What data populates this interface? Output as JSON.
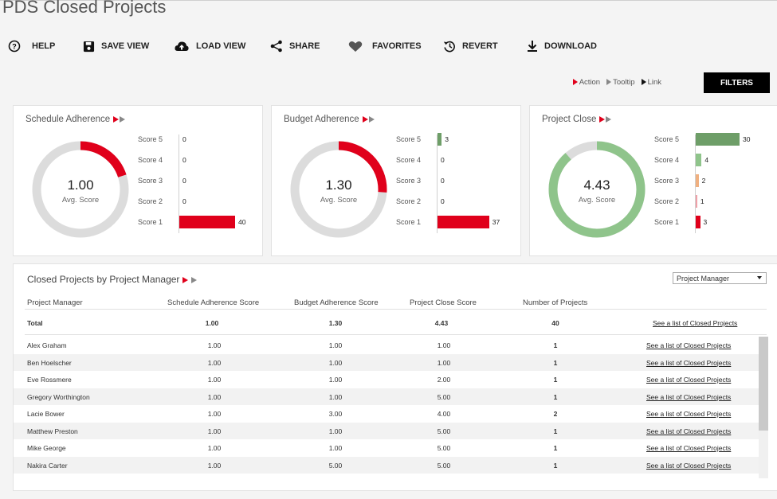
{
  "page": {
    "title": "PDS Closed Projects"
  },
  "toolbar": {
    "help": "HELP",
    "save_view": "SAVE VIEW",
    "load_view": "LOAD VIEW",
    "share": "SHARE",
    "favorites": "FAVORITES",
    "revert": "REVERT",
    "download": "DOWNLOAD"
  },
  "legend": {
    "action": "Action",
    "tooltip": "Tooltip",
    "link": "Link"
  },
  "filters_label": "FILTERS",
  "colors": {
    "red": "#e0001b",
    "green": "#6e9e68",
    "light_green": "#8fc48b",
    "orange": "#f0b080",
    "pink": "#f0a0a8",
    "gray_ring": "#dcdcdc"
  },
  "cards": [
    {
      "title": "Schedule Adherence",
      "avg": "1.00",
      "avg_label": "Avg. Score",
      "fraction": 0.2,
      "ring_color": "#e0001b",
      "bars": [
        {
          "label": "Score 5",
          "value": "0",
          "count": 0,
          "color": "#6e9e68"
        },
        {
          "label": "Score 4",
          "value": "0",
          "count": 0,
          "color": "#8fc48b"
        },
        {
          "label": "Score 3",
          "value": "0",
          "count": 0,
          "color": "#f0b080"
        },
        {
          "label": "Score 2",
          "value": "0",
          "count": 0,
          "color": "#f0a0a8"
        },
        {
          "label": "Score 1",
          "value": "40",
          "count": 40,
          "color": "#e0001b"
        }
      ]
    },
    {
      "title": "Budget Adherence",
      "avg": "1.30",
      "avg_label": "Avg. Score",
      "fraction": 0.26,
      "ring_color": "#e0001b",
      "bars": [
        {
          "label": "Score 5",
          "value": "3",
          "count": 3,
          "color": "#6e9e68"
        },
        {
          "label": "Score 4",
          "value": "0",
          "count": 0,
          "color": "#8fc48b"
        },
        {
          "label": "Score 3",
          "value": "0",
          "count": 0,
          "color": "#f0b080"
        },
        {
          "label": "Score 2",
          "value": "0",
          "count": 0,
          "color": "#f0a0a8"
        },
        {
          "label": "Score 1",
          "value": "37",
          "count": 37,
          "color": "#e0001b"
        }
      ]
    },
    {
      "title": "Project Close",
      "avg": "4.43",
      "avg_label": "Avg. Score",
      "fraction": 0.886,
      "ring_color": "#8fc48b",
      "bars": [
        {
          "label": "Score 5",
          "value": "30",
          "count": 30,
          "color": "#6e9e68"
        },
        {
          "label": "Score 4",
          "value": "4",
          "count": 4,
          "color": "#8fc48b"
        },
        {
          "label": "Score 3",
          "value": "2",
          "count": 2,
          "color": "#f0b080"
        },
        {
          "label": "Score 2",
          "value": "1",
          "count": 1,
          "color": "#f0a0a8"
        },
        {
          "label": "Score 1",
          "value": "3",
          "count": 3,
          "color": "#e0001b"
        }
      ]
    }
  ],
  "table": {
    "title": "Closed Projects by Project Manager",
    "dropdown": "Project Manager",
    "headers": [
      "Project Manager",
      "Schedule Adherence Score",
      "Budget Adherence Score",
      "Project Close Score",
      "Number of Projects"
    ],
    "total": {
      "name": "Total",
      "sched": "1.00",
      "budget": "1.30",
      "close": "4.43",
      "count": "40",
      "link": "See a list of Closed Projects"
    },
    "rows": [
      {
        "name": "Alex Graham",
        "sched": "1.00",
        "budget": "1.00",
        "close": "1.00",
        "count": "1",
        "link": "See a list of Closed Projects"
      },
      {
        "name": "Ben Hoelscher",
        "sched": "1.00",
        "budget": "1.00",
        "close": "1.00",
        "count": "1",
        "link": "See a list of Closed Projects"
      },
      {
        "name": "Eve Rossmere",
        "sched": "1.00",
        "budget": "1.00",
        "close": "2.00",
        "count": "1",
        "link": "See a list of Closed Projects"
      },
      {
        "name": "Gregory Worthington",
        "sched": "1.00",
        "budget": "1.00",
        "close": "5.00",
        "count": "1",
        "link": "See a list of Closed Projects"
      },
      {
        "name": "Lacie Bower",
        "sched": "1.00",
        "budget": "3.00",
        "close": "4.00",
        "count": "2",
        "link": "See a list of Closed Projects"
      },
      {
        "name": "Matthew Preston",
        "sched": "1.00",
        "budget": "1.00",
        "close": "5.00",
        "count": "1",
        "link": "See a list of Closed Projects"
      },
      {
        "name": "Mike George",
        "sched": "1.00",
        "budget": "1.00",
        "close": "5.00",
        "count": "1",
        "link": "See a list of Closed Projects"
      },
      {
        "name": "Nakira Carter",
        "sched": "1.00",
        "budget": "5.00",
        "close": "5.00",
        "count": "1",
        "link": "See a list of Closed Projects"
      }
    ]
  }
}
